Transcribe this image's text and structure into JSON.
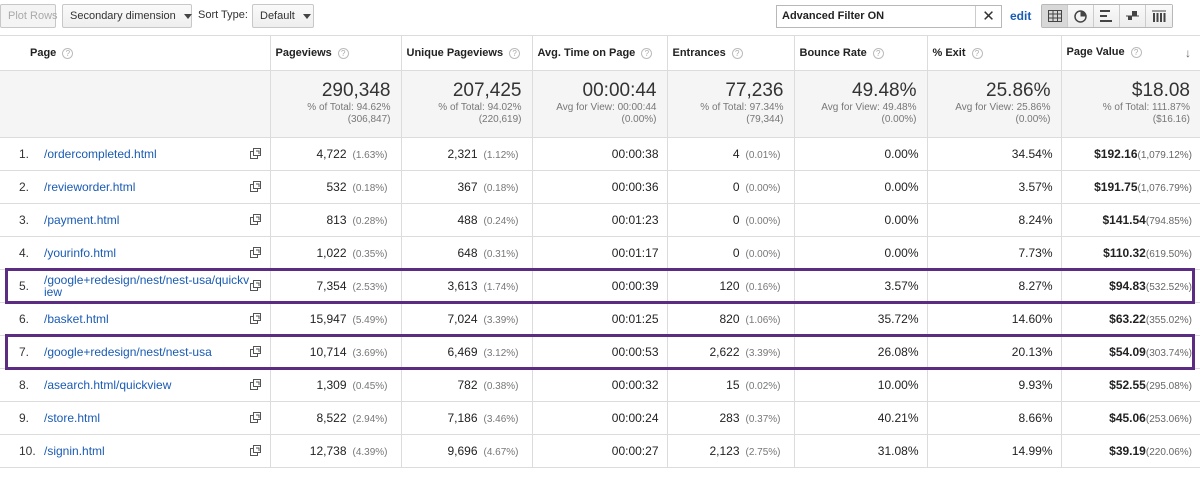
{
  "toolbar": {
    "plot_rows": "Plot Rows",
    "secondary_dimension": "Secondary dimension",
    "sort_type_label": "Sort Type:",
    "sort_type_value": "Default",
    "filter_value": "Advanced Filter ON",
    "clear_glyph": "✕",
    "edit_link": "edit",
    "view_buttons": [
      "grid-icon",
      "pie-icon",
      "performance-bar-icon",
      "comparison-icon",
      "pivot-icon"
    ]
  },
  "table": {
    "headers": {
      "page": "Page",
      "pageviews": "Pageviews",
      "unique_pageviews": "Unique Pageviews",
      "avg_time": "Avg. Time on Page",
      "entrances": "Entrances",
      "bounce_rate": "Bounce Rate",
      "exit": "% Exit",
      "page_value": "Page Value"
    },
    "totals": {
      "pageviews": {
        "value": "290,348",
        "sub1": "% of Total: 94.62%",
        "sub2": "(306,847)"
      },
      "unique_pageviews": {
        "value": "207,425",
        "sub1": "% of Total: 94.02%",
        "sub2": "(220,619)"
      },
      "avg_time": {
        "value": "00:00:44",
        "sub1": "Avg for View: 00:00:44",
        "sub2": "(0.00%)"
      },
      "entrances": {
        "value": "77,236",
        "sub1": "% of Total: 97.34%",
        "sub2": "(79,344)"
      },
      "bounce_rate": {
        "value": "49.48%",
        "sub1": "Avg for View: 49.48%",
        "sub2": "(0.00%)"
      },
      "exit": {
        "value": "25.86%",
        "sub1": "Avg for View: 25.86%",
        "sub2": "(0.00%)"
      },
      "page_value": {
        "value": "$18.08",
        "sub1": "% of Total: 111.87%",
        "sub2": "($16.16)"
      }
    },
    "rows": [
      {
        "num": "1.",
        "page": "/ordercompleted.html",
        "pageviews": "4,722",
        "pv_pct": "(1.63%)",
        "upv": "2,321",
        "upv_pct": "(1.12%)",
        "time": "00:00:38",
        "entrances": "4",
        "ent_pct": "(0.01%)",
        "bounce": "0.00%",
        "exit": "34.54%",
        "value": "$192.16",
        "value_pct": "(1,079.12%)"
      },
      {
        "num": "2.",
        "page": "/revieworder.html",
        "pageviews": "532",
        "pv_pct": "(0.18%)",
        "upv": "367",
        "upv_pct": "(0.18%)",
        "time": "00:00:36",
        "entrances": "0",
        "ent_pct": "(0.00%)",
        "bounce": "0.00%",
        "exit": "3.57%",
        "value": "$191.75",
        "value_pct": "(1,076.79%)"
      },
      {
        "num": "3.",
        "page": "/payment.html",
        "pageviews": "813",
        "pv_pct": "(0.28%)",
        "upv": "488",
        "upv_pct": "(0.24%)",
        "time": "00:01:23",
        "entrances": "0",
        "ent_pct": "(0.00%)",
        "bounce": "0.00%",
        "exit": "8.24%",
        "value": "$141.54",
        "value_pct": "(794.85%)"
      },
      {
        "num": "4.",
        "page": "/yourinfo.html",
        "pageviews": "1,022",
        "pv_pct": "(0.35%)",
        "upv": "648",
        "upv_pct": "(0.31%)",
        "time": "00:01:17",
        "entrances": "0",
        "ent_pct": "(0.00%)",
        "bounce": "0.00%",
        "exit": "7.73%",
        "value": "$110.32",
        "value_pct": "(619.50%)"
      },
      {
        "num": "5.",
        "page": "/google+redesign/nest/nest-usa/quickview",
        "pageviews": "7,354",
        "pv_pct": "(2.53%)",
        "upv": "3,613",
        "upv_pct": "(1.74%)",
        "time": "00:00:39",
        "entrances": "120",
        "ent_pct": "(0.16%)",
        "bounce": "3.57%",
        "exit": "8.27%",
        "value": "$94.83",
        "value_pct": "(532.52%)"
      },
      {
        "num": "6.",
        "page": "/basket.html",
        "pageviews": "15,947",
        "pv_pct": "(5.49%)",
        "upv": "7,024",
        "upv_pct": "(3.39%)",
        "time": "00:01:25",
        "entrances": "820",
        "ent_pct": "(1.06%)",
        "bounce": "35.72%",
        "exit": "14.60%",
        "value": "$63.22",
        "value_pct": "(355.02%)"
      },
      {
        "num": "7.",
        "page": "/google+redesign/nest/nest-usa",
        "pageviews": "10,714",
        "pv_pct": "(3.69%)",
        "upv": "6,469",
        "upv_pct": "(3.12%)",
        "time": "00:00:53",
        "entrances": "2,622",
        "ent_pct": "(3.39%)",
        "bounce": "26.08%",
        "exit": "20.13%",
        "value": "$54.09",
        "value_pct": "(303.74%)"
      },
      {
        "num": "8.",
        "page": "/asearch.html/quickview",
        "pageviews": "1,309",
        "pv_pct": "(0.45%)",
        "upv": "782",
        "upv_pct": "(0.38%)",
        "time": "00:00:32",
        "entrances": "15",
        "ent_pct": "(0.02%)",
        "bounce": "10.00%",
        "exit": "9.93%",
        "value": "$52.55",
        "value_pct": "(295.08%)"
      },
      {
        "num": "9.",
        "page": "/store.html",
        "pageviews": "8,522",
        "pv_pct": "(2.94%)",
        "upv": "7,186",
        "upv_pct": "(3.46%)",
        "time": "00:00:24",
        "entrances": "283",
        "ent_pct": "(0.37%)",
        "bounce": "40.21%",
        "exit": "8.66%",
        "value": "$45.06",
        "value_pct": "(253.06%)"
      },
      {
        "num": "10.",
        "page": "/signin.html",
        "pageviews": "12,738",
        "pv_pct": "(4.39%)",
        "upv": "9,696",
        "upv_pct": "(4.67%)",
        "time": "00:00:27",
        "entrances": "2,123",
        "ent_pct": "(2.75%)",
        "bounce": "31.08%",
        "exit": "14.99%",
        "value": "$39.19",
        "value_pct": "(220.06%)"
      }
    ],
    "highlighted_rows": [
      5,
      7
    ]
  },
  "colors": {
    "highlight": "#5b2c82",
    "link": "#1a5bb4",
    "totals_bg": "#f5f5f5"
  }
}
